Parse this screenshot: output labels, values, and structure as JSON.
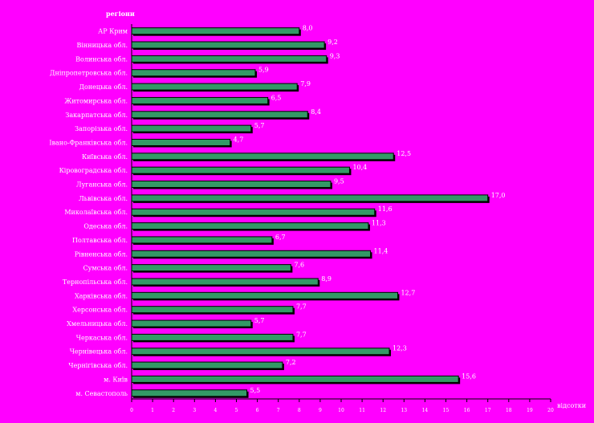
{
  "chart_data": {
    "type": "bar",
    "orientation": "horizontal",
    "title": "",
    "ylabel": "регіони",
    "xlabel": "відсотки",
    "xlim": [
      0,
      20
    ],
    "xticks": [
      "0",
      "1",
      "2",
      "3",
      "4",
      "5",
      "6",
      "7",
      "8",
      "9",
      "10",
      "11",
      "12",
      "13",
      "14",
      "15",
      "16",
      "17",
      "18",
      "19",
      "20"
    ],
    "categories": [
      "АР Крим",
      "Вінницька обл.",
      "Волинська обл.",
      "Дніпропетровська обл.",
      "Донецька обл.",
      "Житомирська обл.",
      "Закарпатська обл.",
      "Запорізька обл.",
      "Івано-Франківська обл.",
      "Київська обл.",
      "Кіровоградська обл.",
      "Луганська обл.",
      "Львівська обл.",
      "Миколаївська обл.",
      "Одеська обл.",
      "Полтавська обл.",
      "Рівненська обл.",
      "Сумська обл.",
      "Тернопільська обл.",
      "Харківська обл.",
      "Херсонська обл.",
      "Хмельницька обл.",
      "Черкаська обл.",
      "Чернівецька обл.",
      "Чернігівська обл.",
      "м. Київ",
      "м. Севастополь"
    ],
    "values": [
      8.0,
      9.2,
      9.3,
      5.9,
      7.9,
      6.5,
      8.4,
      5.7,
      4.7,
      12.5,
      10.4,
      9.5,
      17.0,
      11.6,
      11.3,
      6.7,
      11.4,
      7.6,
      8.9,
      12.7,
      7.7,
      5.7,
      7.7,
      12.3,
      7.2,
      15.6,
      5.5
    ],
    "value_labels": [
      "8,0",
      "9,2",
      "9,3",
      "5,9",
      "7,9",
      "6,5",
      "8,4",
      "5,7",
      "4,7",
      "12,5",
      "10,4",
      "9,5",
      "17,0",
      "11,6",
      "11,3",
      "6,7",
      "11,4",
      "7,6",
      "8,9",
      "12,7",
      "7,7",
      "5,7",
      "7,7",
      "12,3",
      "7,2",
      "15,6",
      "5,5"
    ],
    "colors": {
      "background": "#ff00ff",
      "bar": "#339966",
      "outline": "#000000",
      "text": "#ffffff"
    },
    "grid": false,
    "legend": "none"
  }
}
